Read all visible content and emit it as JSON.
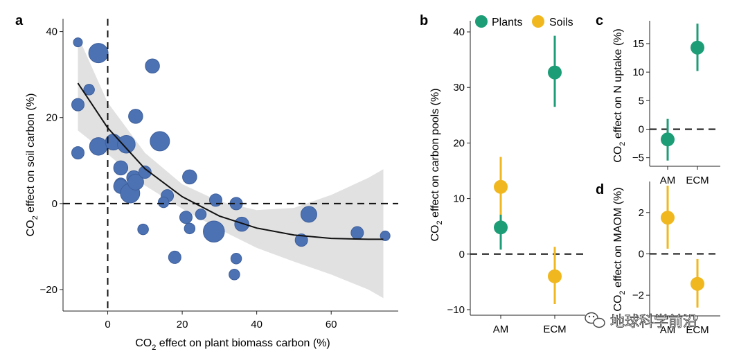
{
  "colors": {
    "points": "#4d72b3",
    "plants": "#1c9d76",
    "soils": "#f0b71f",
    "ribbon": "#e1e1e1",
    "axis": "#222222"
  },
  "watermark": {
    "text": "地球科学前沿",
    "icon": "wechat-icon"
  },
  "chart_data": [
    {
      "panel": "a",
      "type": "scatter",
      "xlabel_main": "CO",
      "xlabel_sub": "2",
      "xlabel_rest": " effect on plant biomass carbon (%)",
      "ylabel_main": "CO",
      "ylabel_sub": "2",
      "ylabel_rest": " effect on soil carbon (%)",
      "xlim": [
        -12,
        78
      ],
      "ylim": [
        -25,
        43
      ],
      "xticks": [
        0,
        20,
        40,
        60
      ],
      "yticks": [
        -20,
        0,
        20,
        40
      ],
      "reference_lines": {
        "x": 0,
        "y": 0
      },
      "points": [
        {
          "x": -8,
          "y": 37.5,
          "size": 1
        },
        {
          "x": -2.5,
          "y": 35,
          "size": 4
        },
        {
          "x": -5,
          "y": 26.5,
          "size": 1.5
        },
        {
          "x": -8,
          "y": 23,
          "size": 2
        },
        {
          "x": -8,
          "y": 11.8,
          "size": 2
        },
        {
          "x": -2.5,
          "y": 13.3,
          "size": 3.5
        },
        {
          "x": 1.5,
          "y": 14.3,
          "size": 3
        },
        {
          "x": 5,
          "y": 13.8,
          "size": 3.5
        },
        {
          "x": 3.5,
          "y": 8.3,
          "size": 2.5
        },
        {
          "x": 3.5,
          "y": 4.5,
          "size": 2
        },
        {
          "x": 3.5,
          "y": 4,
          "size": 2.5
        },
        {
          "x": 6,
          "y": 2.4,
          "size": 4
        },
        {
          "x": 7,
          "y": 6,
          "size": 2.5
        },
        {
          "x": 7.5,
          "y": 5,
          "size": 3
        },
        {
          "x": 10,
          "y": 7.3,
          "size": 2
        },
        {
          "x": 7.5,
          "y": 20.3,
          "size": 2.5
        },
        {
          "x": 12,
          "y": 32,
          "size": 2.5
        },
        {
          "x": 14,
          "y": 14.5,
          "size": 4
        },
        {
          "x": 16,
          "y": 1.8,
          "size": 2
        },
        {
          "x": 15,
          "y": 0.3,
          "size": 1.5
        },
        {
          "x": 22,
          "y": 6.2,
          "size": 2.5
        },
        {
          "x": 25,
          "y": -2.5,
          "size": 1.5
        },
        {
          "x": 29,
          "y": 0.8,
          "size": 2
        },
        {
          "x": 21,
          "y": -3.2,
          "size": 2
        },
        {
          "x": 22,
          "y": -5.8,
          "size": 1.5
        },
        {
          "x": 28.5,
          "y": -6.5,
          "size": 4.5
        },
        {
          "x": 9.5,
          "y": -6,
          "size": 1.5
        },
        {
          "x": 18,
          "y": -12.5,
          "size": 2
        },
        {
          "x": 34.5,
          "y": 0,
          "size": 2
        },
        {
          "x": 36,
          "y": -4.8,
          "size": 2.5
        },
        {
          "x": 34.5,
          "y": -12.8,
          "size": 1.5
        },
        {
          "x": 34,
          "y": -16.5,
          "size": 1.5
        },
        {
          "x": 54,
          "y": -2.5,
          "size": 3
        },
        {
          "x": 52,
          "y": -8.5,
          "size": 2
        },
        {
          "x": 67,
          "y": -6.8,
          "size": 2
        },
        {
          "x": 74.5,
          "y": -7.5,
          "size": 1.2
        }
      ],
      "fit": {
        "x": [
          -8,
          0,
          10,
          20,
          30,
          40,
          50,
          60,
          70,
          74
        ],
        "y": [
          28,
          17.6,
          8.1,
          1.6,
          -2.9,
          -5.7,
          -7.3,
          -8.1,
          -8.3,
          -8.3
        ]
      },
      "ribbon": {
        "x": [
          -8,
          0,
          10,
          20,
          30,
          40,
          50,
          60,
          70,
          74
        ],
        "upper": [
          39,
          23.5,
          11.8,
          4.5,
          0.5,
          -1.5,
          -1,
          2,
          6,
          8
        ],
        "lower": [
          17,
          11.5,
          4.2,
          -1.2,
          -6,
          -10.3,
          -13.5,
          -16.5,
          -20,
          -22
        ]
      }
    },
    {
      "panel": "b",
      "type": "pointrange",
      "ylabel_main": "CO",
      "ylabel_sub": "2",
      "ylabel_rest": " effect on carbon pools (%)",
      "categories": [
        "AM",
        "ECM"
      ],
      "ylim": [
        -11,
        42
      ],
      "yticks": [
        -10,
        0,
        10,
        20,
        30,
        40
      ],
      "legend": [
        "Plants",
        "Soils"
      ],
      "series": [
        {
          "name": "Plants",
          "estimates": [
            {
              "mean": 4.8,
              "low": 0.8,
              "high": 9
            },
            {
              "mean": 32.7,
              "low": 26.5,
              "high": 39.3
            }
          ]
        },
        {
          "name": "Soils",
          "estimates": [
            {
              "mean": 12.1,
              "low": 7.1,
              "high": 17.5
            },
            {
              "mean": -4,
              "low": -9,
              "high": 1.3
            }
          ]
        }
      ]
    },
    {
      "panel": "c",
      "type": "pointrange",
      "ylabel_main": "CO",
      "ylabel_sub": "2",
      "ylabel_rest": " effect on N uptake (%)",
      "categories": [
        "AM",
        "ECM"
      ],
      "ylim": [
        -6.5,
        19
      ],
      "yticks": [
        -5,
        0,
        5,
        10,
        15
      ],
      "series": [
        {
          "name": "Plants",
          "estimates": [
            {
              "mean": -1.8,
              "low": -5.5,
              "high": 1.8
            },
            {
              "mean": 14.3,
              "low": 10.2,
              "high": 18.5
            }
          ]
        }
      ]
    },
    {
      "panel": "d",
      "type": "pointrange",
      "ylabel_main": "CO",
      "ylabel_sub": "2",
      "ylabel_rest": " effect on MAOM (%)",
      "categories": [
        "AM",
        "ECM"
      ],
      "ylim": [
        -3,
        3.5
      ],
      "yticks": [
        -2,
        0,
        2
      ],
      "series": [
        {
          "name": "Soils",
          "estimates": [
            {
              "mean": 1.75,
              "low": 0.25,
              "high": 3.3
            },
            {
              "mean": -1.45,
              "low": -2.6,
              "high": -0.25
            }
          ]
        }
      ]
    }
  ]
}
